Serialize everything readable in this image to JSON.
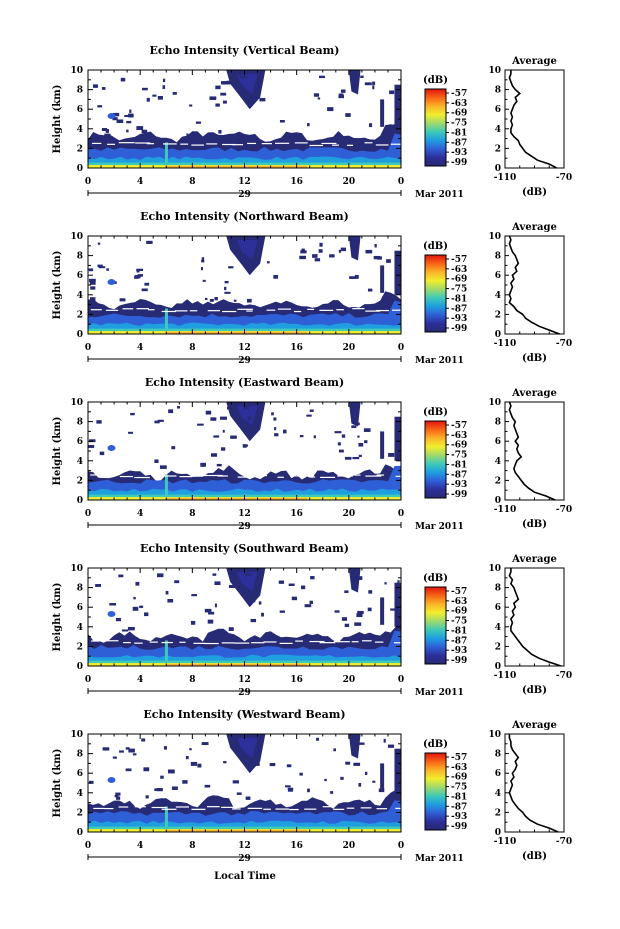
{
  "chart_data": {
    "type": "heatmap",
    "x_axis": {
      "ticks": [
        "0",
        "4",
        "8",
        "12",
        "16",
        "20",
        "0"
      ],
      "range": [
        0,
        24
      ],
      "date_label": "29",
      "month_label": "Mar 2011",
      "label": "Local Time"
    },
    "y_axis": {
      "label": "Height (km)",
      "ticks": [
        "0",
        "2",
        "4",
        "6",
        "8",
        "10"
      ],
      "range": [
        0,
        10
      ]
    },
    "colorbar": {
      "unit": "(dB)",
      "ticks": [
        "-57",
        "-63",
        "-69",
        "-75",
        "-81",
        "-87",
        "-93",
        "-99"
      ],
      "colors": [
        "#e0150f",
        "#f76415",
        "#fbb32a",
        "#f2ee2e",
        "#9fd96a",
        "#3fcab8",
        "#1f9ee0",
        "#2f5fd6",
        "#2d2f9a",
        "#272a74"
      ]
    },
    "average_profile": {
      "title": "Average",
      "xlabel": "(dB)",
      "xticks": [
        "-110",
        "-70"
      ],
      "xrange": [
        -110,
        -70
      ],
      "yrange": [
        0,
        10
      ]
    },
    "panels": [
      {
        "title": "Echo Intensity (Vertical Beam)",
        "cloud_top_km": 3.2,
        "profile": [
          [
            0,
            -75
          ],
          [
            0.4,
            -80
          ],
          [
            0.8,
            -88
          ],
          [
            1.2,
            -92
          ],
          [
            1.6,
            -96
          ],
          [
            2.0,
            -98
          ],
          [
            2.4,
            -100
          ],
          [
            2.8,
            -101
          ],
          [
            3.2,
            -104
          ],
          [
            3.6,
            -106
          ],
          [
            4.0,
            -106
          ],
          [
            4.4,
            -105
          ],
          [
            4.8,
            -106
          ],
          [
            5.2,
            -105
          ],
          [
            5.6,
            -106
          ],
          [
            6.0,
            -105
          ],
          [
            6.4,
            -104
          ],
          [
            6.8,
            -102
          ],
          [
            7.2,
            -103
          ],
          [
            7.6,
            -100
          ],
          [
            8.0,
            -103
          ],
          [
            8.4,
            -105
          ],
          [
            8.8,
            -106
          ],
          [
            9.2,
            -107
          ],
          [
            9.6,
            -106
          ],
          [
            10,
            -106
          ]
        ]
      },
      {
        "title": "Echo Intensity (Northward Beam)",
        "cloud_top_km": 3.0,
        "profile": [
          [
            0,
            -73
          ],
          [
            0.4,
            -80
          ],
          [
            0.8,
            -87
          ],
          [
            1.2,
            -92
          ],
          [
            1.6,
            -96
          ],
          [
            2.0,
            -98
          ],
          [
            2.4,
            -102
          ],
          [
            2.8,
            -104
          ],
          [
            3.2,
            -107
          ],
          [
            3.6,
            -106
          ],
          [
            4.0,
            -107
          ],
          [
            4.4,
            -106
          ],
          [
            4.8,
            -105
          ],
          [
            5.2,
            -106
          ],
          [
            5.6,
            -104
          ],
          [
            6.0,
            -105
          ],
          [
            6.4,
            -102
          ],
          [
            6.8,
            -103
          ],
          [
            7.2,
            -101
          ],
          [
            7.6,
            -102
          ],
          [
            8.0,
            -103
          ],
          [
            8.4,
            -105
          ],
          [
            8.8,
            -106
          ],
          [
            9.2,
            -107
          ],
          [
            9.6,
            -106
          ],
          [
            10,
            -107
          ]
        ]
      },
      {
        "title": "Echo Intensity (Eastward Beam)",
        "cloud_top_km": 2.6,
        "profile": [
          [
            0,
            -76
          ],
          [
            0.4,
            -82
          ],
          [
            0.8,
            -90
          ],
          [
            1.2,
            -94
          ],
          [
            1.6,
            -97
          ],
          [
            2.0,
            -99
          ],
          [
            2.4,
            -101
          ],
          [
            2.8,
            -103
          ],
          [
            3.2,
            -104
          ],
          [
            3.6,
            -103
          ],
          [
            4.0,
            -102
          ],
          [
            4.4,
            -99
          ],
          [
            4.8,
            -101
          ],
          [
            5.2,
            -102
          ],
          [
            5.6,
            -101
          ],
          [
            6.0,
            -103
          ],
          [
            6.4,
            -101
          ],
          [
            6.8,
            -102
          ],
          [
            7.2,
            -103
          ],
          [
            7.6,
            -104
          ],
          [
            8.0,
            -103
          ],
          [
            8.4,
            -105
          ],
          [
            8.8,
            -106
          ],
          [
            9.2,
            -107
          ],
          [
            9.6,
            -106
          ],
          [
            10,
            -107
          ]
        ]
      },
      {
        "title": "Echo Intensity (Southward Beam)",
        "cloud_top_km": 3.0,
        "profile": [
          [
            0,
            -72
          ],
          [
            0.4,
            -80
          ],
          [
            0.8,
            -87
          ],
          [
            1.2,
            -92
          ],
          [
            1.6,
            -95
          ],
          [
            2.0,
            -98
          ],
          [
            2.4,
            -100
          ],
          [
            2.8,
            -102
          ],
          [
            3.2,
            -104
          ],
          [
            3.6,
            -106
          ],
          [
            4.0,
            -106
          ],
          [
            4.4,
            -105
          ],
          [
            4.8,
            -106
          ],
          [
            5.2,
            -104
          ],
          [
            5.6,
            -105
          ],
          [
            6.0,
            -103
          ],
          [
            6.4,
            -104
          ],
          [
            6.8,
            -101
          ],
          [
            7.2,
            -102
          ],
          [
            7.6,
            -103
          ],
          [
            8.0,
            -104
          ],
          [
            8.4,
            -106
          ],
          [
            8.8,
            -105
          ],
          [
            9.2,
            -107
          ],
          [
            9.6,
            -106
          ],
          [
            10,
            -106
          ]
        ]
      },
      {
        "title": "Echo Intensity (Westward Beam)",
        "cloud_top_km": 3.0,
        "profile": [
          [
            0,
            -74
          ],
          [
            0.4,
            -80
          ],
          [
            0.8,
            -88
          ],
          [
            1.2,
            -93
          ],
          [
            1.6,
            -96
          ],
          [
            2.0,
            -98
          ],
          [
            2.4,
            -101
          ],
          [
            2.8,
            -103
          ],
          [
            3.2,
            -105
          ],
          [
            3.6,
            -106
          ],
          [
            4.0,
            -107
          ],
          [
            4.4,
            -106
          ],
          [
            4.8,
            -105
          ],
          [
            5.2,
            -106
          ],
          [
            5.6,
            -104
          ],
          [
            6.0,
            -105
          ],
          [
            6.4,
            -103
          ],
          [
            6.8,
            -102
          ],
          [
            7.2,
            -103
          ],
          [
            7.6,
            -101
          ],
          [
            8.0,
            -103
          ],
          [
            8.4,
            -105
          ],
          [
            8.8,
            -106
          ],
          [
            9.2,
            -106
          ],
          [
            9.6,
            -107
          ],
          [
            10,
            -107
          ]
        ]
      }
    ]
  }
}
